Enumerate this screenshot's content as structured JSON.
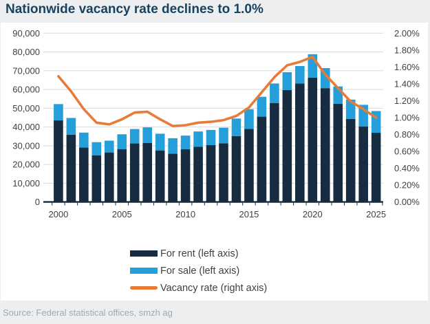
{
  "title": "Nationwide vacancy rate declines to 1.0%",
  "source": "Source: Federal statistical offices, smzh ag",
  "legend": {
    "items": [
      {
        "label": "For rent (left axis)",
        "series": "for_rent"
      },
      {
        "label": "For sale (left axis)",
        "series": "for_sale"
      },
      {
        "label": "Vacancy rate (right axis)",
        "series": "vacancy_rate"
      }
    ]
  },
  "colors": {
    "for_rent": "#172B41",
    "for_sale": "#259FD9",
    "vacancy_line": "#E87B38",
    "title": "#17435F",
    "gridline": "#D9D9D9",
    "axis_line": "#16283C",
    "axis_label": "#404040",
    "source_text": "#A4A8AC",
    "page_bg": "#EDEEF0",
    "panel_bg": "#FFFFFF"
  },
  "chart_data": {
    "type": "bar",
    "subtype": "stacked-bars-with-line",
    "title": "Nationwide vacancy rate declines to 1.0%",
    "categories": [
      2000,
      2001,
      2002,
      2003,
      2004,
      2005,
      2006,
      2007,
      2008,
      2009,
      2010,
      2011,
      2012,
      2013,
      2014,
      2015,
      2016,
      2017,
      2018,
      2019,
      2020,
      2021,
      2022,
      2023,
      2024,
      2025
    ],
    "series": [
      {
        "name": "For rent (left axis)",
        "type": "bar",
        "axis": "left",
        "stack": "vacant",
        "values": [
          43500,
          35800,
          29000,
          24900,
          26400,
          28100,
          31200,
          31500,
          27500,
          25700,
          28100,
          29400,
          30300,
          31300,
          35100,
          39000,
          45500,
          52800,
          59700,
          63200,
          66300,
          60700,
          52400,
          44300,
          40200,
          36900
        ]
      },
      {
        "name": "For sale (left axis)",
        "type": "bar",
        "axis": "left",
        "stack": "vacant",
        "values": [
          8700,
          9000,
          8000,
          7000,
          6300,
          8000,
          7700,
          8300,
          8900,
          8300,
          7300,
          8200,
          8100,
          8300,
          9400,
          10500,
          10600,
          10400,
          9500,
          9300,
          12500,
          10700,
          9200,
          10300,
          11600,
          11600
        ]
      },
      {
        "name": "Vacancy rate (right axis)",
        "type": "line",
        "axis": "right",
        "unit": "%",
        "values": [
          1.49,
          1.31,
          1.1,
          0.94,
          0.92,
          0.98,
          1.06,
          1.07,
          0.98,
          0.9,
          0.91,
          0.94,
          0.95,
          0.97,
          1.02,
          1.12,
          1.3,
          1.48,
          1.62,
          1.66,
          1.72,
          1.51,
          1.35,
          1.19,
          1.1,
          1.0
        ]
      }
    ],
    "left_axis": {
      "min": 0,
      "max": 90000,
      "tick_step": 10000,
      "tick_labels": [
        "90,000",
        "80,000",
        "70,000",
        "60,000",
        "50,000",
        "40,000",
        "30,000",
        "20,000",
        "10,000",
        "0"
      ]
    },
    "right_axis": {
      "min": 0,
      "max": 2.0,
      "tick_step": 0.2,
      "tick_labels": [
        "2.00%",
        "1.80%",
        "1.60%",
        "1.40%",
        "1.20%",
        "1.00%",
        "0.80%",
        "0.60%",
        "0.40%",
        "0.20%",
        "0.00%"
      ]
    },
    "x_tick_labels": [
      "2000",
      "2005",
      "2010",
      "2015",
      "2020",
      "2025"
    ],
    "grid": true,
    "legend_position": "bottom"
  }
}
